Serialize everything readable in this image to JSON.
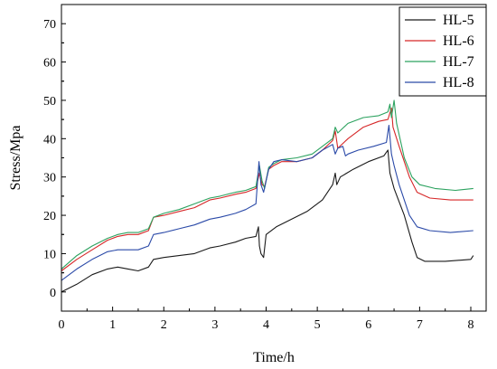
{
  "chart_data": {
    "type": "line",
    "xlabel": "Time/h",
    "ylabel": "Stress/Mpa",
    "xlim": [
      0,
      8.3
    ],
    "ylim": [
      -5,
      75
    ],
    "xticks": [
      "0",
      "1",
      "2",
      "3",
      "4",
      "5",
      "6",
      "7",
      "8"
    ],
    "yticks": [
      "0",
      "10",
      "20",
      "30",
      "40",
      "50",
      "60",
      "70"
    ],
    "grid": false,
    "legend_position": "top-right",
    "series": [
      {
        "name": "HL-5",
        "color": "#1a1a1a",
        "points": [
          [
            0,
            0
          ],
          [
            0.3,
            2
          ],
          [
            0.6,
            4.5
          ],
          [
            0.9,
            6
          ],
          [
            1.1,
            6.5
          ],
          [
            1.3,
            6
          ],
          [
            1.5,
            5.5
          ],
          [
            1.7,
            6.5
          ],
          [
            1.8,
            8.5
          ],
          [
            2.0,
            9
          ],
          [
            2.3,
            9.5
          ],
          [
            2.6,
            10
          ],
          [
            2.9,
            11.5
          ],
          [
            3.1,
            12
          ],
          [
            3.4,
            13
          ],
          [
            3.6,
            14
          ],
          [
            3.8,
            14.5
          ],
          [
            3.85,
            17
          ],
          [
            3.87,
            12
          ],
          [
            3.9,
            10
          ],
          [
            3.95,
            9
          ],
          [
            4.0,
            15
          ],
          [
            4.2,
            17
          ],
          [
            4.5,
            19
          ],
          [
            4.8,
            21
          ],
          [
            5.1,
            24
          ],
          [
            5.3,
            28
          ],
          [
            5.35,
            31
          ],
          [
            5.38,
            28
          ],
          [
            5.45,
            30
          ],
          [
            5.7,
            32
          ],
          [
            6.0,
            34
          ],
          [
            6.3,
            35.5
          ],
          [
            6.38,
            37
          ],
          [
            6.42,
            31
          ],
          [
            6.5,
            27
          ],
          [
            6.7,
            20
          ],
          [
            6.85,
            13
          ],
          [
            6.95,
            9
          ],
          [
            7.1,
            8
          ],
          [
            7.5,
            8
          ],
          [
            8.0,
            8.5
          ],
          [
            8.05,
            9.5
          ]
        ]
      },
      {
        "name": "HL-6",
        "color": "#d62728",
        "points": [
          [
            0,
            5.5
          ],
          [
            0.3,
            8.5
          ],
          [
            0.6,
            11
          ],
          [
            0.9,
            13.5
          ],
          [
            1.1,
            14.5
          ],
          [
            1.3,
            15
          ],
          [
            1.5,
            15
          ],
          [
            1.7,
            16
          ],
          [
            1.8,
            19.5
          ],
          [
            2.0,
            20
          ],
          [
            2.3,
            21
          ],
          [
            2.6,
            22
          ],
          [
            2.9,
            24
          ],
          [
            3.1,
            24.5
          ],
          [
            3.4,
            25.5
          ],
          [
            3.6,
            26
          ],
          [
            3.8,
            27
          ],
          [
            3.87,
            31
          ],
          [
            3.92,
            28
          ],
          [
            3.97,
            27.5
          ],
          [
            4.05,
            32
          ],
          [
            4.15,
            33
          ],
          [
            4.3,
            34
          ],
          [
            4.6,
            34
          ],
          [
            4.9,
            35
          ],
          [
            5.1,
            37
          ],
          [
            5.3,
            39.5
          ],
          [
            5.35,
            42
          ],
          [
            5.4,
            37.5
          ],
          [
            5.6,
            40
          ],
          [
            5.9,
            43
          ],
          [
            6.2,
            44.5
          ],
          [
            6.38,
            45
          ],
          [
            6.45,
            48
          ],
          [
            6.48,
            43
          ],
          [
            6.6,
            38
          ],
          [
            6.8,
            30
          ],
          [
            6.95,
            26
          ],
          [
            7.2,
            24.5
          ],
          [
            7.6,
            24
          ],
          [
            8.05,
            24
          ]
        ]
      },
      {
        "name": "HL-7",
        "color": "#2ca25f",
        "points": [
          [
            0,
            6
          ],
          [
            0.3,
            9.5
          ],
          [
            0.6,
            12
          ],
          [
            0.9,
            14
          ],
          [
            1.1,
            15
          ],
          [
            1.3,
            15.5
          ],
          [
            1.5,
            15.5
          ],
          [
            1.7,
            16.5
          ],
          [
            1.8,
            19.5
          ],
          [
            2.0,
            20.5
          ],
          [
            2.3,
            21.5
          ],
          [
            2.6,
            23
          ],
          [
            2.9,
            24.5
          ],
          [
            3.1,
            25
          ],
          [
            3.4,
            26
          ],
          [
            3.6,
            26.5
          ],
          [
            3.8,
            27.5
          ],
          [
            3.87,
            33
          ],
          [
            3.92,
            29
          ],
          [
            3.97,
            27
          ],
          [
            4.05,
            32.5
          ],
          [
            4.15,
            33.5
          ],
          [
            4.3,
            34.5
          ],
          [
            4.6,
            35
          ],
          [
            4.9,
            36
          ],
          [
            5.1,
            38
          ],
          [
            5.3,
            40
          ],
          [
            5.35,
            43
          ],
          [
            5.4,
            41.5
          ],
          [
            5.6,
            44
          ],
          [
            5.9,
            45.5
          ],
          [
            6.2,
            46
          ],
          [
            6.38,
            47
          ],
          [
            6.42,
            49
          ],
          [
            6.45,
            45.5
          ],
          [
            6.5,
            50
          ],
          [
            6.55,
            44
          ],
          [
            6.7,
            35
          ],
          [
            6.85,
            30
          ],
          [
            7.0,
            28
          ],
          [
            7.3,
            27
          ],
          [
            7.7,
            26.5
          ],
          [
            8.05,
            27
          ]
        ]
      },
      {
        "name": "HL-8",
        "color": "#2b4aa8",
        "points": [
          [
            0,
            3
          ],
          [
            0.3,
            6
          ],
          [
            0.6,
            8.5
          ],
          [
            0.9,
            10.5
          ],
          [
            1.1,
            11
          ],
          [
            1.3,
            11
          ],
          [
            1.5,
            11
          ],
          [
            1.7,
            12
          ],
          [
            1.8,
            15
          ],
          [
            2.0,
            15.5
          ],
          [
            2.3,
            16.5
          ],
          [
            2.6,
            17.5
          ],
          [
            2.9,
            19
          ],
          [
            3.1,
            19.5
          ],
          [
            3.4,
            20.5
          ],
          [
            3.6,
            21.5
          ],
          [
            3.8,
            23
          ],
          [
            3.86,
            34
          ],
          [
            3.9,
            28
          ],
          [
            3.95,
            26
          ],
          [
            4.05,
            32
          ],
          [
            4.15,
            34
          ],
          [
            4.3,
            34.5
          ],
          [
            4.6,
            34
          ],
          [
            4.9,
            35
          ],
          [
            5.1,
            37
          ],
          [
            5.3,
            38.5
          ],
          [
            5.35,
            36
          ],
          [
            5.4,
            37.5
          ],
          [
            5.5,
            38
          ],
          [
            5.55,
            35.5
          ],
          [
            5.6,
            36
          ],
          [
            5.8,
            37
          ],
          [
            6.1,
            38
          ],
          [
            6.35,
            39
          ],
          [
            6.4,
            43.5
          ],
          [
            6.45,
            36
          ],
          [
            6.5,
            33
          ],
          [
            6.6,
            28
          ],
          [
            6.8,
            20
          ],
          [
            6.95,
            17
          ],
          [
            7.2,
            16
          ],
          [
            7.6,
            15.5
          ],
          [
            8.05,
            16
          ]
        ]
      }
    ]
  }
}
